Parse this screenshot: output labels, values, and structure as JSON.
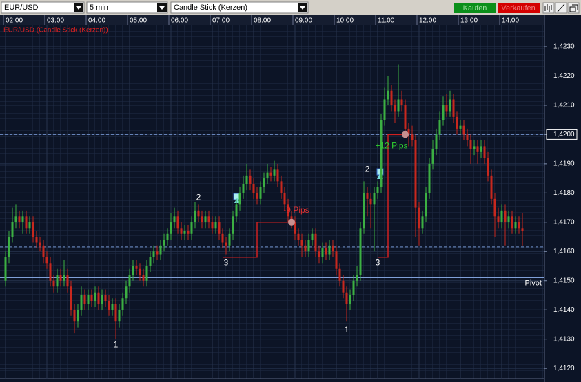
{
  "toolbar": {
    "symbol": "EUR/USD",
    "interval": "5 min",
    "chart_style": "Candle Stick (Kerzen)",
    "buy": "Kaufen",
    "sell": "Verkaufen"
  },
  "chart_data": {
    "type": "candlestick",
    "subtitle": "EUR/USD (Candle Stick (Kerzen))",
    "categories": [
      "02:00",
      null,
      null,
      null,
      null,
      null,
      null,
      null,
      null,
      null,
      null,
      null,
      "03:00",
      null,
      null,
      null,
      null,
      null,
      null,
      null,
      null,
      null,
      null,
      null,
      "04:00",
      null,
      null,
      null,
      null,
      null,
      null,
      null,
      null,
      null,
      null,
      null,
      "05:00",
      null,
      null,
      null,
      null,
      null,
      null,
      null,
      null,
      null,
      null,
      null,
      "06:00",
      null,
      null,
      null,
      null,
      null,
      null,
      null,
      null,
      null,
      null,
      null,
      "07:00",
      null,
      null,
      null,
      null,
      null,
      null,
      null,
      null,
      null,
      null,
      null,
      "08:00",
      null,
      null,
      null,
      null,
      null,
      null,
      null,
      null,
      null,
      null,
      null,
      "09:00",
      null,
      null,
      null,
      null,
      null,
      null,
      null,
      null,
      null,
      null,
      null,
      "10:00",
      null,
      null,
      null,
      null,
      null,
      null,
      null,
      null,
      null,
      null,
      null,
      "11:00",
      null,
      null,
      null,
      null,
      null,
      null,
      null,
      null,
      null,
      null,
      null,
      "12:00",
      null,
      null,
      null,
      null,
      null,
      null,
      null,
      null,
      null,
      null,
      null,
      "13:00",
      null,
      null,
      null,
      null,
      null,
      null,
      null,
      null,
      null,
      null,
      null,
      "14:00",
      null,
      null,
      null,
      null,
      null,
      null
    ],
    "open": [
      1.415,
      1.4158,
      1.4165,
      1.417,
      1.4172,
      1.417,
      1.4172,
      1.4168,
      1.417,
      1.4165,
      1.4163,
      1.4162,
      1.4158,
      1.4156,
      1.415,
      1.4148,
      1.4152,
      1.415,
      1.4152,
      1.4148,
      1.414,
      1.4136,
      1.414,
      1.4145,
      1.4142,
      1.4145,
      1.4143,
      1.4146,
      1.4142,
      1.4145,
      1.4143,
      1.414,
      1.4142,
      1.4136,
      1.414,
      1.4144,
      1.4148,
      1.4152,
      1.4155,
      1.4154,
      1.4152,
      1.415,
      1.4155,
      1.4158,
      1.416,
      1.4159,
      1.4162,
      1.4164,
      1.4166,
      1.417,
      1.4172,
      1.4168,
      1.4166,
      1.4167,
      1.4166,
      1.417,
      1.4174,
      1.4172,
      1.417,
      1.4172,
      1.417,
      1.4168,
      1.417,
      1.4166,
      1.4163,
      1.4162,
      1.4166,
      1.4172,
      1.4176,
      1.418,
      1.4183,
      1.4186,
      1.4183,
      1.418,
      1.4178,
      1.4182,
      1.4185,
      1.4187,
      1.4186,
      1.4188,
      1.4184,
      1.418,
      1.4176,
      1.4172,
      1.417,
      1.4166,
      1.4164,
      1.4162,
      1.416,
      1.4164,
      1.4166,
      1.416,
      1.4158,
      1.4161,
      1.4159,
      1.4162,
      1.416,
      1.4154,
      1.415,
      1.4146,
      1.4142,
      1.4145,
      1.415,
      1.4152,
      1.4168,
      1.418,
      1.4178,
      1.4176,
      1.418,
      1.4182,
      1.4205,
      1.4212,
      1.4215,
      1.421,
      1.4208,
      1.4212,
      1.421,
      1.4202,
      1.42,
      1.4198,
      1.4175,
      1.4168,
      1.4172,
      1.418,
      1.419,
      1.4195,
      1.42,
      1.4205,
      1.421,
      1.4208,
      1.4212,
      1.4206,
      1.4202,
      1.4203,
      1.42,
      1.4198,
      1.4195,
      1.4196,
      1.4194,
      1.4196,
      1.4192,
      1.4186,
      1.4178,
      1.4172,
      1.417,
      1.4174,
      1.417,
      1.4172,
      1.4168,
      1.417,
      1.4168
    ],
    "high": [
      1.416,
      1.4167,
      1.4175,
      1.4176,
      1.4174,
      1.4174,
      1.4174,
      1.4172,
      1.4172,
      1.4167,
      1.4165,
      1.4164,
      1.416,
      1.4158,
      1.4152,
      1.4154,
      1.4154,
      1.4157,
      1.4154,
      1.415,
      1.4142,
      1.4142,
      1.4148,
      1.4147,
      1.4147,
      1.4147,
      1.4148,
      1.4148,
      1.4147,
      1.4147,
      1.4145,
      1.4144,
      1.4144,
      1.4142,
      1.4146,
      1.415,
      1.4154,
      1.4157,
      1.4157,
      1.4156,
      1.4154,
      1.4157,
      1.416,
      1.4162,
      1.4162,
      1.4164,
      1.4166,
      1.4168,
      1.4173,
      1.4175,
      1.4174,
      1.417,
      1.4169,
      1.4169,
      1.4172,
      1.4177,
      1.4176,
      1.4174,
      1.4174,
      1.4174,
      1.4172,
      1.4172,
      1.4172,
      1.4168,
      1.4165,
      1.4168,
      1.4174,
      1.4178,
      1.4182,
      1.4186,
      1.419,
      1.4188,
      1.4185,
      1.4182,
      1.4184,
      1.4187,
      1.419,
      1.4189,
      1.4191,
      1.419,
      1.4186,
      1.4182,
      1.4178,
      1.4174,
      1.4172,
      1.4168,
      1.4166,
      1.4164,
      1.4166,
      1.4168,
      1.4168,
      1.4162,
      1.4163,
      1.4163,
      1.4164,
      1.4164,
      1.4162,
      1.4156,
      1.4152,
      1.4148,
      1.4147,
      1.4152,
      1.4155,
      1.417,
      1.4184,
      1.4182,
      1.418,
      1.4182,
      1.4184,
      1.4207,
      1.4216,
      1.422,
      1.4217,
      1.4212,
      1.4224,
      1.4215,
      1.4212,
      1.4204,
      1.4203,
      1.42,
      1.4177,
      1.4174,
      1.4182,
      1.4192,
      1.4198,
      1.4202,
      1.4208,
      1.4213,
      1.4214,
      1.4215,
      1.4214,
      1.4208,
      1.4205,
      1.4205,
      1.4202,
      1.42,
      1.4198,
      1.4198,
      1.4198,
      1.4198,
      1.4194,
      1.4188,
      1.418,
      1.4175,
      1.4176,
      1.4176,
      1.4174,
      1.4174,
      1.4172,
      1.4172,
      1.4173
    ],
    "low": [
      1.4148,
      1.4156,
      1.4163,
      1.4168,
      1.4168,
      1.4166,
      1.4166,
      1.4166,
      1.4163,
      1.4161,
      1.416,
      1.4156,
      1.4154,
      1.4148,
      1.4146,
      1.4146,
      1.4148,
      1.4148,
      1.4146,
      1.4138,
      1.4132,
      1.4134,
      1.4138,
      1.414,
      1.414,
      1.4141,
      1.4141,
      1.414,
      1.414,
      1.4141,
      1.4138,
      1.4138,
      1.413,
      1.4134,
      1.4138,
      1.4142,
      1.4146,
      1.415,
      1.4152,
      1.415,
      1.4148,
      1.4148,
      1.4153,
      1.4156,
      1.4157,
      1.4157,
      1.416,
      1.4162,
      1.4164,
      1.4168,
      1.4166,
      1.4164,
      1.4164,
      1.4164,
      1.4164,
      1.4168,
      1.417,
      1.4168,
      1.4168,
      1.4168,
      1.4166,
      1.4166,
      1.4164,
      1.4161,
      1.4159,
      1.416,
      1.4164,
      1.417,
      1.4174,
      1.4178,
      1.4181,
      1.4181,
      1.4178,
      1.4176,
      1.4176,
      1.418,
      1.4183,
      1.4184,
      1.4184,
      1.4182,
      1.4178,
      1.4174,
      1.417,
      1.4168,
      1.4164,
      1.4162,
      1.4158,
      1.4158,
      1.4158,
      1.4162,
      1.4158,
      1.4156,
      1.4156,
      1.4157,
      1.4157,
      1.4158,
      1.4152,
      1.4148,
      1.4144,
      1.4136,
      1.414,
      1.4143,
      1.4148,
      1.415,
      1.4166,
      1.4172,
      1.4168,
      1.416,
      1.4178,
      1.418,
      1.4203,
      1.421,
      1.4208,
      1.4204,
      1.4206,
      1.4208,
      1.42,
      1.4196,
      1.4196,
      1.4165,
      1.4162,
      1.4166,
      1.417,
      1.4178,
      1.4188,
      1.4193,
      1.4198,
      1.4203,
      1.4206,
      1.4206,
      1.4204,
      1.42,
      1.42,
      1.4198,
      1.4196,
      1.419,
      1.4193,
      1.419,
      1.4192,
      1.419,
      1.4184,
      1.4176,
      1.4165,
      1.4168,
      1.4168,
      1.4162,
      1.4168,
      1.4166,
      1.4166,
      1.4166,
      1.4162
    ],
    "close": [
      1.4158,
      1.4165,
      1.417,
      1.4172,
      1.417,
      1.4172,
      1.4168,
      1.417,
      1.4165,
      1.4163,
      1.4162,
      1.4158,
      1.4156,
      1.415,
      1.4148,
      1.4152,
      1.415,
      1.4152,
      1.4148,
      1.414,
      1.4136,
      1.414,
      1.4145,
      1.4142,
      1.4145,
      1.4143,
      1.4146,
      1.4142,
      1.4145,
      1.4143,
      1.414,
      1.4142,
      1.4136,
      1.414,
      1.4144,
      1.4148,
      1.4152,
      1.4155,
      1.4154,
      1.4152,
      1.415,
      1.4155,
      1.4158,
      1.416,
      1.4159,
      1.4162,
      1.4164,
      1.4166,
      1.417,
      1.4172,
      1.4168,
      1.4166,
      1.4167,
      1.4166,
      1.417,
      1.4174,
      1.4172,
      1.417,
      1.4172,
      1.417,
      1.4168,
      1.417,
      1.4166,
      1.4163,
      1.4162,
      1.4166,
      1.4172,
      1.4176,
      1.418,
      1.4183,
      1.4186,
      1.4183,
      1.418,
      1.4178,
      1.4182,
      1.4185,
      1.4187,
      1.4186,
      1.4188,
      1.4184,
      1.418,
      1.4176,
      1.4172,
      1.417,
      1.4166,
      1.4164,
      1.4162,
      1.416,
      1.4164,
      1.4166,
      1.416,
      1.4158,
      1.4161,
      1.4159,
      1.4162,
      1.416,
      1.4154,
      1.415,
      1.4146,
      1.4142,
      1.4145,
      1.415,
      1.4152,
      1.4168,
      1.418,
      1.4178,
      1.4176,
      1.418,
      1.4182,
      1.4205,
      1.4212,
      1.4215,
      1.421,
      1.4208,
      1.4212,
      1.421,
      1.4202,
      1.42,
      1.4198,
      1.4175,
      1.4168,
      1.4172,
      1.418,
      1.419,
      1.4195,
      1.42,
      1.4205,
      1.421,
      1.4208,
      1.4212,
      1.4206,
      1.4202,
      1.4203,
      1.42,
      1.4198,
      1.4195,
      1.4196,
      1.4194,
      1.4196,
      1.4192,
      1.4186,
      1.4178,
      1.4172,
      1.417,
      1.4174,
      1.417,
      1.4172,
      1.4168,
      1.417,
      1.4168,
      1.4167
    ],
    "up_color": "#3cb043",
    "down_color": "#c8281e",
    "ylim": [
      1.41165,
      1.42373
    ],
    "yticks": [
      {
        "value": 1.412,
        "label": "1,4120"
      },
      {
        "value": 1.413,
        "label": "1,4130"
      },
      {
        "value": 1.414,
        "label": "1,4140"
      },
      {
        "value": 1.415,
        "label": "1,4150"
      },
      {
        "value": 1.416,
        "label": "1,4160"
      },
      {
        "value": 1.417,
        "label": "1,4170"
      },
      {
        "value": 1.418,
        "label": "1,4180"
      },
      {
        "value": 1.419,
        "label": "1,4190"
      },
      {
        "value": 1.42,
        "label": "1,4200"
      },
      {
        "value": 1.421,
        "label": "1,4210"
      },
      {
        "value": 1.422,
        "label": "1,4220"
      },
      {
        "value": 1.423,
        "label": "1,4230"
      }
    ],
    "current_price": 1.42,
    "grid": true,
    "hlines": [
      {
        "value": 1.42,
        "style": "dashed",
        "color": "#6f8fc8"
      },
      {
        "value": 1.41615,
        "style": "dashed",
        "color": "#6f8fc8"
      },
      {
        "value": 1.4151,
        "style": "solid",
        "color": "#7f9fd8",
        "label": "Pivot"
      }
    ],
    "trades": [
      {
        "x": [
          63,
          73,
          73,
          83
        ],
        "y": [
          1.4158,
          1.4158,
          1.417,
          1.417
        ],
        "color": "#d02020"
      },
      {
        "x": [
          108,
          111,
          111,
          116
        ],
        "y": [
          1.4158,
          1.4158,
          1.42,
          1.42
        ],
        "color": "#d02020"
      }
    ],
    "annotations": [
      {
        "text": "1",
        "index": 32,
        "price": 1.4128,
        "color": "#ffffff"
      },
      {
        "text": "2",
        "index": 56,
        "price": 1.41784,
        "color": "#ffffff"
      },
      {
        "text": "3",
        "index": 64,
        "price": 1.4156,
        "color": "#ffffff"
      },
      {
        "text": "1",
        "index": 99,
        "price": 1.4133,
        "color": "#ffffff"
      },
      {
        "text": "2",
        "index": 105,
        "price": 1.4188,
        "color": "#ffffff"
      },
      {
        "text": "3",
        "index": 108,
        "price": 1.4156,
        "color": "#ffffff"
      },
      {
        "text": "-9 Pips",
        "index": 84.4,
        "price": 1.4174,
        "color": "#e03030"
      },
      {
        "text": "+12 Pips",
        "index": 112,
        "price": 1.4196,
        "color": "#30d030"
      }
    ]
  }
}
